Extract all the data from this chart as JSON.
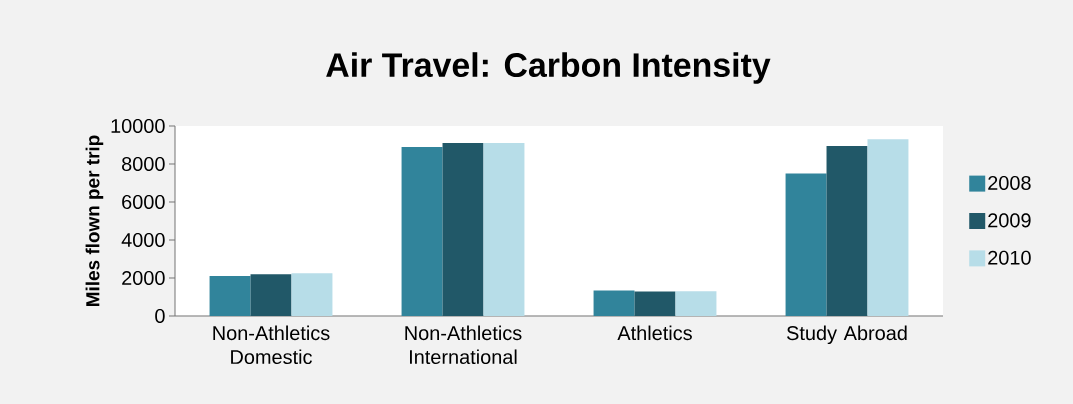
{
  "chart_data": {
    "type": "bar",
    "title": "Air Travel: Carbon Intensity",
    "ylabel": "Miles flown per trip",
    "categories": [
      "Non-Athletics Domestic",
      "Non-Athletics International",
      "Athletics",
      "Study Abroad"
    ],
    "series": [
      {
        "name": "2008",
        "color": "#31849b",
        "values": [
          2100,
          8900,
          1340,
          7500
        ]
      },
      {
        "name": "2009",
        "color": "#215868",
        "values": [
          2200,
          9100,
          1290,
          8950
        ]
      },
      {
        "name": "2010",
        "color": "#b7dde8",
        "values": [
          2250,
          9100,
          1300,
          9300
        ]
      }
    ],
    "ylim": [
      0,
      10000
    ],
    "yticks": [
      0,
      2000,
      4000,
      6000,
      8000,
      10000
    ],
    "legend": "right"
  }
}
